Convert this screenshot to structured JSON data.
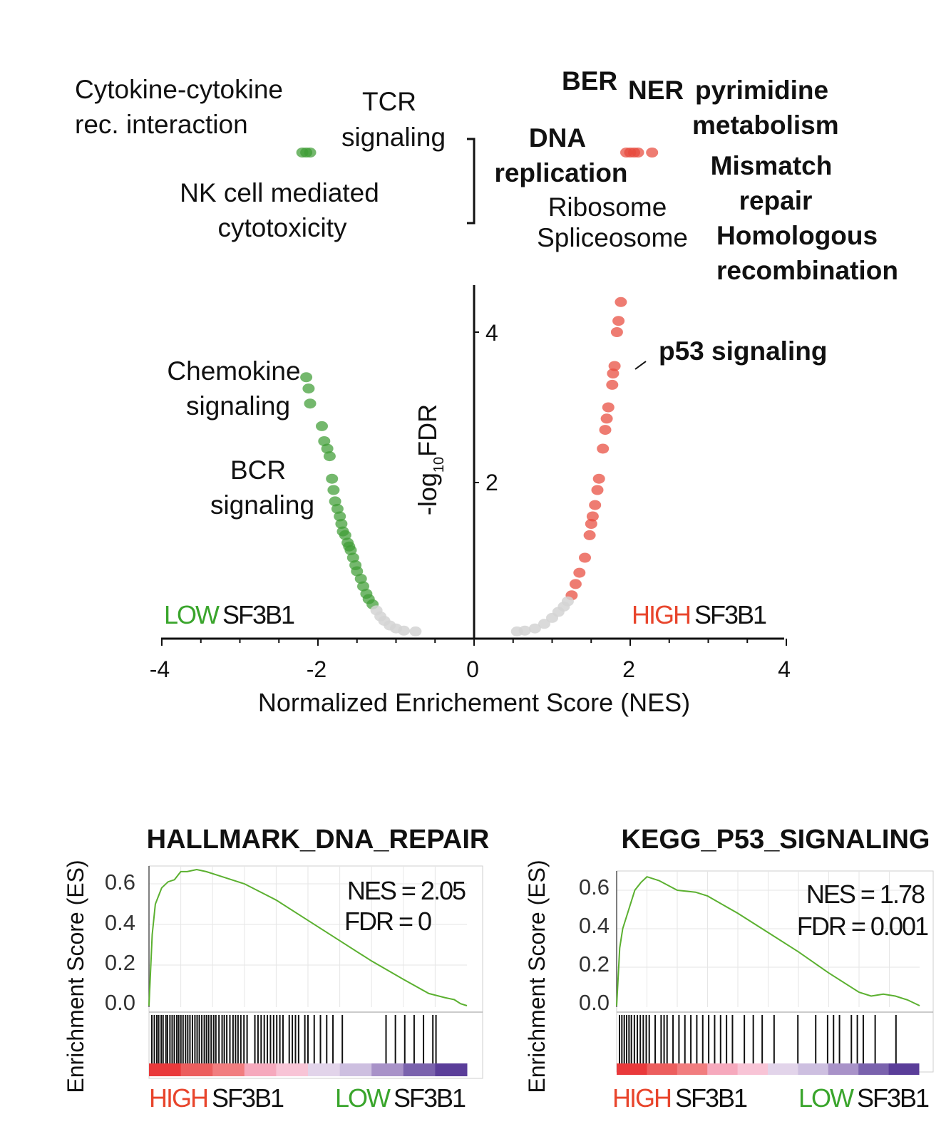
{
  "colors": {
    "green": "#3f9d35",
    "red": "#e84a3c",
    "grey": "#d4d4d4",
    "es_line": "#5bb030",
    "low_label": "#3aa52c",
    "high_label": "#e8452c",
    "heat": [
      "#e9393b",
      "#ec5e5e",
      "#f17d7f",
      "#f6a9bd",
      "#f8c4d6",
      "#e2d4ea",
      "#cdbfe0",
      "#a892c8",
      "#7a62ad",
      "#5a3d99"
    ]
  },
  "volcano": {
    "xlabel": "Normalized Enrichement Score (NES)",
    "ylabel_main": "-log",
    "ylabel_sub": "10",
    "ylabel_end": "FDR",
    "xticks": [
      "-4",
      "-2",
      "0",
      "2",
      "4"
    ],
    "yticks": [
      "2",
      "4"
    ],
    "low_word": "LOW",
    "high_word": "HIGH",
    "gene": "SF3B1",
    "labels_left": {
      "cytokine_1": "Cytokine-cytokine",
      "cytokine_2": "rec. interaction",
      "tcr_1": "TCR",
      "tcr_2": "signaling",
      "nk_1": "NK cell mediated",
      "nk_2": "cytotoxicity",
      "chemokine_1": "Chemokine",
      "chemokine_2": "signaling",
      "bcr_1": "BCR",
      "bcr_2": "signaling"
    },
    "labels_right": {
      "ber": "BER",
      "ner": "NER",
      "pyr_1": "pyrimidine",
      "pyr_2": "metabolism",
      "dna_1": "DNA",
      "dna_2": "replication",
      "mismatch_1": "Mismatch",
      "mismatch_2": "repair",
      "ribosome": "Ribosome",
      "spliceosome": "Spliceosome",
      "homologous_1": "Homologous",
      "homologous_2": "recombination",
      "p53": "p53 signaling"
    }
  },
  "chart_data": [
    {
      "type": "scatter",
      "title": "",
      "xlabel": "Normalized Enrichement Score (NES)",
      "ylabel": "-log10FDR",
      "xlim": [
        -4,
        4
      ],
      "ylim": [
        0,
        4.5
      ],
      "series": [
        {
          "name": "LOW SF3B1",
          "points": [
            [
              -2.15,
              3.4
            ],
            [
              -2.12,
              3.25
            ],
            [
              -2.1,
              3.05
            ],
            [
              -1.95,
              2.75
            ],
            [
              -1.92,
              2.55
            ],
            [
              -1.88,
              2.45
            ],
            [
              -1.85,
              2.35
            ],
            [
              -1.82,
              2.05
            ],
            [
              -1.8,
              1.9
            ],
            [
              -1.78,
              1.75
            ],
            [
              -1.75,
              1.65
            ],
            [
              -1.72,
              1.55
            ],
            [
              -1.7,
              1.45
            ],
            [
              -1.68,
              1.35
            ],
            [
              -1.65,
              1.3
            ],
            [
              -1.62,
              1.2
            ],
            [
              -1.6,
              1.15
            ],
            [
              -1.58,
              1.1
            ],
            [
              -1.55,
              1.0
            ],
            [
              -1.52,
              0.9
            ],
            [
              -1.5,
              0.82
            ],
            [
              -1.45,
              0.72
            ],
            [
              -1.42,
              0.62
            ],
            [
              -1.38,
              0.52
            ],
            [
              -1.35,
              0.45
            ],
            [
              -1.3,
              0.38
            ]
          ]
        },
        {
          "name": "LOW SF3B1 (n.s.)",
          "points": [
            [
              -1.25,
              0.3
            ],
            [
              -1.2,
              0.22
            ],
            [
              -1.15,
              0.16
            ],
            [
              -1.08,
              0.1
            ],
            [
              -1.0,
              0.06
            ],
            [
              -0.9,
              0.03
            ],
            [
              -0.75,
              0.02
            ]
          ]
        },
        {
          "name": "HIGH SF3B1",
          "points": [
            [
              1.88,
              4.4
            ],
            [
              1.85,
              4.15
            ],
            [
              1.83,
              4.0
            ],
            [
              1.8,
              3.55
            ],
            [
              1.78,
              3.45
            ],
            [
              1.77,
              3.3
            ],
            [
              1.72,
              3.0
            ],
            [
              1.7,
              2.85
            ],
            [
              1.68,
              2.7
            ],
            [
              1.65,
              2.45
            ],
            [
              1.6,
              2.05
            ],
            [
              1.58,
              1.9
            ],
            [
              1.55,
              1.7
            ],
            [
              1.52,
              1.55
            ],
            [
              1.5,
              1.45
            ],
            [
              1.48,
              1.3
            ],
            [
              1.42,
              1.0
            ],
            [
              1.35,
              0.8
            ],
            [
              1.3,
              0.65
            ],
            [
              1.25,
              0.5
            ]
          ]
        },
        {
          "name": "HIGH SF3B1 (n.s.)",
          "points": [
            [
              1.2,
              0.42
            ],
            [
              1.15,
              0.35
            ],
            [
              1.08,
              0.28
            ],
            [
              1.0,
              0.2
            ],
            [
              0.9,
              0.12
            ],
            [
              0.78,
              0.06
            ],
            [
              0.65,
              0.03
            ],
            [
              0.55,
              0.02
            ]
          ]
        },
        {
          "name": "LOW SF3B1 (top, FDR 0)",
          "points": [
            [
              -2.2,
              6.1
            ],
            [
              -2.15,
              6.1
            ],
            [
              -2.1,
              6.1
            ]
          ]
        },
        {
          "name": "HIGH SF3B1 (top, FDR 0)",
          "points": [
            [
              1.95,
              6.1
            ],
            [
              2.0,
              6.1
            ],
            [
              2.05,
              6.1
            ],
            [
              2.1,
              6.1
            ],
            [
              2.28,
              6.1
            ]
          ]
        }
      ]
    },
    {
      "type": "line",
      "title": "HALLMARK_DNA_REPAIR",
      "ylabel": "Enrichment Score (ES)",
      "yticks": [
        "0.6",
        "0.4",
        "0.2",
        "0.0"
      ],
      "ylim": [
        0,
        0.7
      ],
      "nes": "NES = 2.05",
      "fdr": "FDR = 0",
      "left_word": "HIGH",
      "right_word": "LOW",
      "gene": "SF3B1",
      "series": [
        {
          "x": [
            0,
            0.01,
            0.02,
            0.04,
            0.06,
            0.08,
            0.1,
            0.12,
            0.15,
            0.18,
            0.22,
            0.3,
            0.4,
            0.5,
            0.6,
            0.7,
            0.8,
            0.88,
            0.93,
            0.96,
            0.98,
            1.0
          ],
          "y": [
            0,
            0.35,
            0.5,
            0.58,
            0.61,
            0.62,
            0.66,
            0.66,
            0.67,
            0.66,
            0.64,
            0.6,
            0.52,
            0.42,
            0.32,
            0.22,
            0.13,
            0.06,
            0.04,
            0.03,
            0.01,
            0
          ]
        }
      ],
      "hits": [
        0,
        0.008,
        0.016,
        0.022,
        0.03,
        0.036,
        0.045,
        0.05,
        0.058,
        0.065,
        0.072,
        0.08,
        0.086,
        0.093,
        0.1,
        0.108,
        0.115,
        0.122,
        0.13,
        0.138,
        0.145,
        0.152,
        0.16,
        0.168,
        0.175,
        0.182,
        0.19,
        0.198,
        0.205,
        0.215,
        0.225,
        0.232,
        0.24,
        0.25,
        0.26,
        0.268,
        0.276,
        0.285,
        0.295,
        0.305,
        0.33,
        0.34,
        0.35,
        0.36,
        0.37,
        0.38,
        0.39,
        0.4,
        0.41,
        0.42,
        0.44,
        0.45,
        0.46,
        0.47,
        0.49,
        0.5,
        0.52,
        0.54,
        0.56,
        0.58,
        0.61,
        0.75,
        0.78,
        0.81,
        0.84,
        0.87,
        0.9,
        0.91
      ]
    },
    {
      "type": "line",
      "title": "KEGG_P53_SIGNALING",
      "ylabel": "Enrichment Score (ES)",
      "yticks": [
        "0.6",
        "0.4",
        "0.2",
        "0.0"
      ],
      "ylim": [
        0,
        0.7
      ],
      "nes": "NES = 1.78",
      "fdr": "FDR = 0.001",
      "left_word": "HIGH",
      "right_word": "LOW",
      "gene": "SF3B1",
      "series": [
        {
          "x": [
            0,
            0.01,
            0.02,
            0.04,
            0.06,
            0.08,
            0.1,
            0.14,
            0.2,
            0.26,
            0.3,
            0.4,
            0.5,
            0.6,
            0.7,
            0.8,
            0.84,
            0.88,
            0.92,
            0.96,
            1.0
          ],
          "y": [
            0,
            0.3,
            0.4,
            0.5,
            0.6,
            0.64,
            0.67,
            0.65,
            0.6,
            0.59,
            0.57,
            0.48,
            0.38,
            0.28,
            0.17,
            0.07,
            0.05,
            0.06,
            0.05,
            0.03,
            0
          ]
        }
      ],
      "hits": [
        0,
        0.008,
        0.016,
        0.024,
        0.032,
        0.04,
        0.05,
        0.06,
        0.07,
        0.08,
        0.09,
        0.1,
        0.12,
        0.14,
        0.15,
        0.16,
        0.18,
        0.2,
        0.22,
        0.24,
        0.26,
        0.28,
        0.3,
        0.32,
        0.34,
        0.36,
        0.38,
        0.42,
        0.45,
        0.48,
        0.52,
        0.6,
        0.66,
        0.7,
        0.72,
        0.74,
        0.78,
        0.8,
        0.82,
        0.86,
        0.93
      ]
    }
  ]
}
